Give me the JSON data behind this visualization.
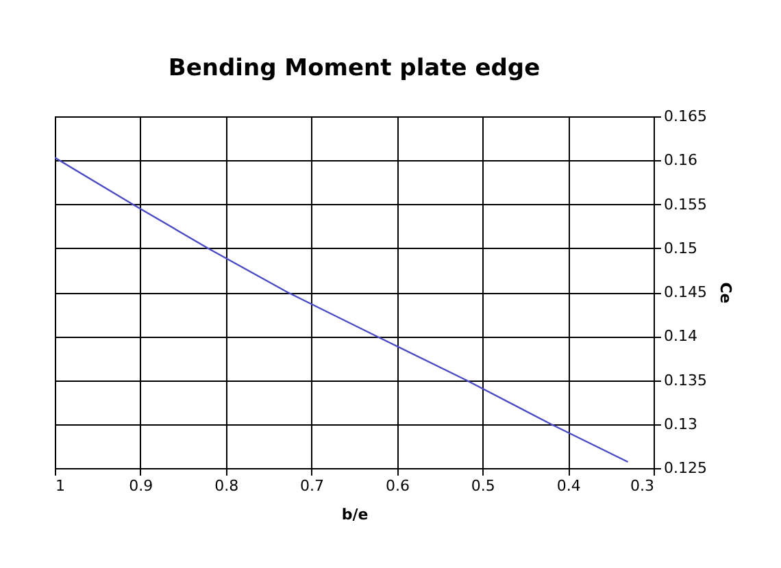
{
  "chart_data": {
    "type": "line",
    "title": "Bending Moment plate edge",
    "xlabel": "b/e",
    "ylabel": "Ce",
    "x": [
      1,
      0.909,
      0.821,
      0.728,
      0.624,
      0.519,
      0.42,
      0.33
    ],
    "series": [
      {
        "color": "#4a4ac4",
        "values": [
          0.1603,
          0.155,
          0.15,
          0.145,
          0.14,
          0.135,
          0.13,
          0.1257
        ]
      }
    ],
    "xlim": [
      1,
      0.3
    ],
    "xticks": [
      1,
      0.9,
      0.8,
      0.7,
      0.6,
      0.5,
      0.4,
      0.3
    ],
    "ylim": [
      0.125,
      0.165
    ],
    "yticks": [
      0.125,
      0.13,
      0.135,
      0.14,
      0.145,
      0.15,
      0.155,
      0.16,
      0.165
    ],
    "grid": true
  }
}
